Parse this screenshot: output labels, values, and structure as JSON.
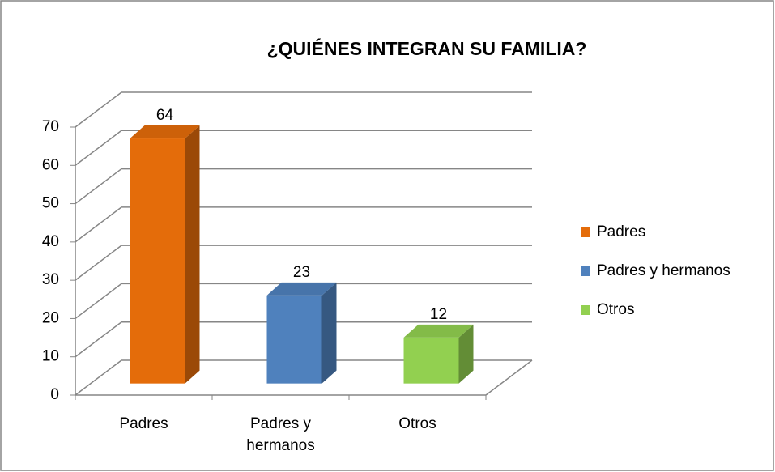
{
  "chart_data": {
    "type": "bar3d",
    "title": "¿QUIÉNES INTEGRAN SU FAMILIA?",
    "categories": [
      "Padres",
      "Padres y hermanos",
      "Otros"
    ],
    "series": [
      {
        "name": "Padres",
        "color": "#e46c0a",
        "values": [
          64,
          null,
          null
        ]
      },
      {
        "name": "Padres y hermanos",
        "color": "#4f81bd",
        "values": [
          null,
          23,
          null
        ]
      },
      {
        "name": "Otros",
        "color": "#92d050",
        "values": [
          null,
          null,
          12
        ]
      }
    ],
    "ylim": [
      0,
      70
    ],
    "yticks": [
      0,
      10,
      20,
      30,
      40,
      50,
      60,
      70
    ],
    "grid": true,
    "legend": "right",
    "data_labels": true
  }
}
